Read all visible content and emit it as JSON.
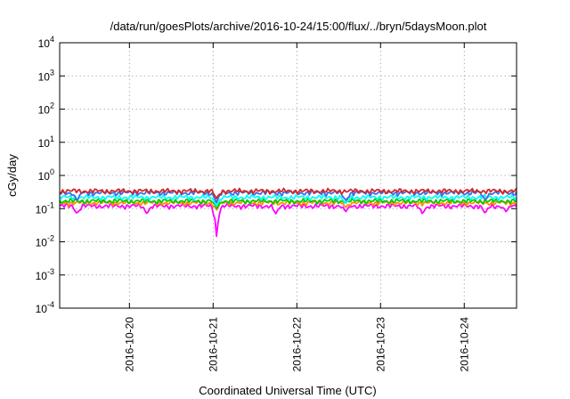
{
  "chart_data": {
    "type": "line",
    "title": "/data/run/goesPlots/archive/2016-10-24/15:00/flux/../bryn/5daysMoon.plot",
    "xlabel": "Coordinated Universal Time (UTC)",
    "ylabel": "cGy/day",
    "yscale": "log",
    "ylim": [
      0.0001,
      10000
    ],
    "y_ticks": [
      {
        "base": "10",
        "exp": "-4"
      },
      {
        "base": "10",
        "exp": "-3"
      },
      {
        "base": "10",
        "exp": "-2"
      },
      {
        "base": "10",
        "exp": "-1"
      },
      {
        "base": "10",
        "exp": "0"
      },
      {
        "base": "10",
        "exp": "1"
      },
      {
        "base": "10",
        "exp": "2"
      },
      {
        "base": "10",
        "exp": "3"
      },
      {
        "base": "10",
        "exp": "4"
      }
    ],
    "xlim": [
      "2016-10-19 04:00",
      "2016-10-24 15:00"
    ],
    "x_ticks": [
      "2016-10-20",
      "2016-10-21",
      "2016-10-22",
      "2016-10-23",
      "2016-10-24"
    ],
    "grid": true,
    "series": [
      {
        "color": "#ff00ff",
        "base": 0.12,
        "dips": [
          [
            "2016-10-19 09:00",
            0.07
          ],
          [
            "2016-10-20 05:00",
            0.07
          ],
          [
            "2016-10-21 01:00",
            0.013
          ],
          [
            "2016-10-21 18:00",
            0.07
          ],
          [
            "2016-10-22 14:00",
            0.08
          ],
          [
            "2016-10-23 12:00",
            0.07
          ],
          [
            "2016-10-24 06:00",
            0.07
          ],
          [
            "2016-10-24 12:00",
            0.08
          ]
        ]
      },
      {
        "color": "#ff8c00",
        "base": 0.15,
        "dips": [
          [
            "2016-10-21 01:00",
            0.09
          ],
          [
            "2016-10-22 14:00",
            0.11
          ]
        ]
      },
      {
        "color": "#00cc00",
        "base": 0.17,
        "dips": [
          [
            "2016-10-21 01:00",
            0.1
          ]
        ]
      },
      {
        "color": "#00ffff",
        "base": 0.22,
        "dips": [
          [
            "2016-10-21 01:00",
            0.12
          ],
          [
            "2016-10-22 14:00",
            0.14
          ]
        ]
      },
      {
        "color": "#4169e1",
        "base": 0.3,
        "dips": [
          [
            "2016-10-19 09:00",
            0.17
          ],
          [
            "2016-10-21 01:00",
            0.15
          ],
          [
            "2016-10-22 14:00",
            0.17
          ],
          [
            "2016-10-24 06:00",
            0.18
          ]
        ]
      },
      {
        "color": "#d62728",
        "base": 0.34,
        "dips": [
          [
            "2016-10-21 01:00",
            0.2
          ]
        ]
      }
    ]
  }
}
